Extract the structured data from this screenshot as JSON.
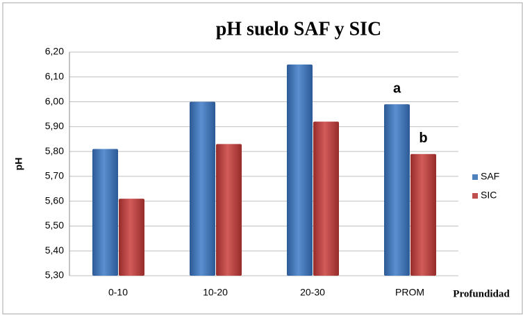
{
  "chart_data": {
    "type": "bar",
    "title": "pH suelo SAF y SIC",
    "categories": [
      "0-10",
      "10-20",
      "20-30",
      "PROM"
    ],
    "series": [
      {
        "name": "SAF",
        "color": "#4f81bd",
        "values": [
          5.81,
          6.0,
          6.15,
          5.99
        ]
      },
      {
        "name": "SIC",
        "color": "#c0504d",
        "values": [
          5.61,
          5.83,
          5.92,
          5.79
        ]
      }
    ],
    "ylim": [
      5.3,
      6.2
    ],
    "yticks": [
      {
        "value": 5.3,
        "label": "5,30"
      },
      {
        "value": 5.4,
        "label": "5,40"
      },
      {
        "value": 5.5,
        "label": "5,50"
      },
      {
        "value": 5.6,
        "label": "5,60"
      },
      {
        "value": 5.7,
        "label": "5,70"
      },
      {
        "value": 5.8,
        "label": "5,80"
      },
      {
        "value": 5.9,
        "label": "5,90"
      },
      {
        "value": 6.0,
        "label": "6,00"
      },
      {
        "value": 6.1,
        "label": "6,10"
      },
      {
        "value": 6.2,
        "label": "6,20"
      }
    ],
    "y_label": "pH",
    "x_label": "Profundidad",
    "annotations": [
      "a",
      "b"
    ],
    "grid": true,
    "legend": "right"
  }
}
